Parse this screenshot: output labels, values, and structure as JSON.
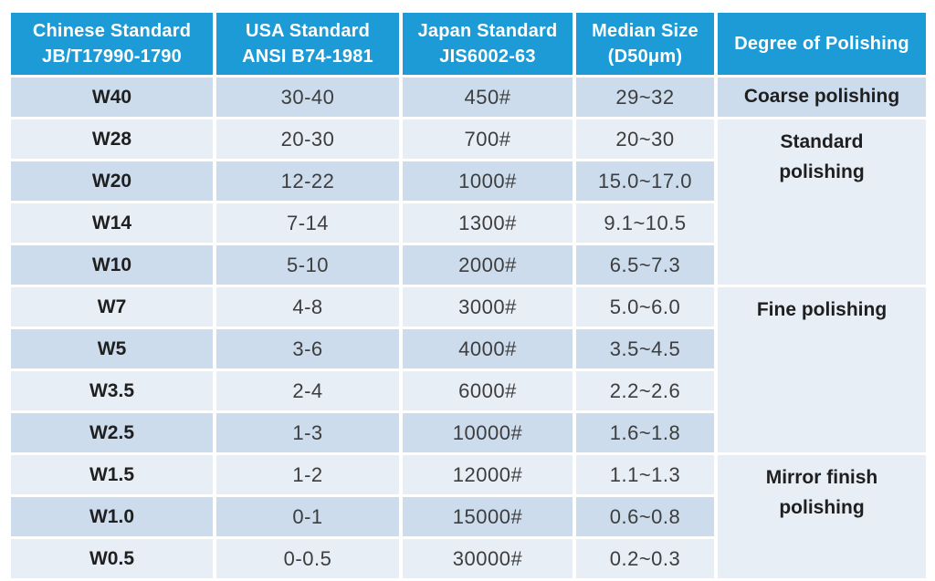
{
  "colors": {
    "header_bg": "#1C9BD6",
    "header_text": "#FFFFFF",
    "band_dark": "#CCDCEC",
    "band_light": "#E8EEF6",
    "text_strong": "#1F1F1F",
    "text_num": "#3D3D3D"
  },
  "table": {
    "headers": {
      "chinese": "Chinese Standard\nJB/T17990-1790",
      "usa": "USA Standard\nANSI B74-1981",
      "japan": "Japan Standard\nJIS6002-63",
      "median": "Median Size\n(D50μm)",
      "degree": "Degree of Polishing"
    },
    "rows": [
      {
        "chinese": "W40",
        "usa": "30-40",
        "japan": "450#",
        "median": "29~32"
      },
      {
        "chinese": "W28",
        "usa": "20-30",
        "japan": "700#",
        "median": "20~30"
      },
      {
        "chinese": "W20",
        "usa": "12-22",
        "japan": "1000#",
        "median": "15.0~17.0"
      },
      {
        "chinese": "W14",
        "usa": "7-14",
        "japan": "1300#",
        "median": "9.1~10.5"
      },
      {
        "chinese": "W10",
        "usa": "5-10",
        "japan": "2000#",
        "median": "6.5~7.3"
      },
      {
        "chinese": "W7",
        "usa": "4-8",
        "japan": "3000#",
        "median": "5.0~6.0"
      },
      {
        "chinese": "W5",
        "usa": "3-6",
        "japan": "4000#",
        "median": "3.5~4.5"
      },
      {
        "chinese": "W3.5",
        "usa": "2-4",
        "japan": "6000#",
        "median": "2.2~2.6"
      },
      {
        "chinese": "W2.5",
        "usa": "1-3",
        "japan": "10000#",
        "median": "1.6~1.8"
      },
      {
        "chinese": "W1.5",
        "usa": "1-2",
        "japan": "12000#",
        "median": "1.1~1.3"
      },
      {
        "chinese": "W1.0",
        "usa": "0-1",
        "japan": "15000#",
        "median": "0.6~0.8"
      },
      {
        "chinese": "W0.5",
        "usa": "0-0.5",
        "japan": "30000#",
        "median": "0.2~0.3"
      }
    ],
    "degree_groups": [
      {
        "label": "Coarse polishing",
        "rows": 1
      },
      {
        "label": "Standard\npolishing",
        "rows": 4
      },
      {
        "label": "Fine polishing",
        "rows": 4
      },
      {
        "label": "Mirror finish\npolishing",
        "rows": 3
      }
    ]
  },
  "chart_data": {
    "type": "table",
    "title": "Abrasive standards comparison and degree of polishing",
    "columns": [
      "Chinese Standard JB/T17990-1790",
      "USA Standard ANSI B74-1981",
      "Japan Standard JIS6002-63",
      "Median Size (D50μm)",
      "Degree of Polishing"
    ],
    "rows": [
      [
        "W40",
        "30-40",
        "450#",
        "29~32",
        "Coarse polishing"
      ],
      [
        "W28",
        "20-30",
        "700#",
        "20~30",
        "Standard polishing"
      ],
      [
        "W20",
        "12-22",
        "1000#",
        "15.0~17.0",
        "Standard polishing"
      ],
      [
        "W14",
        "7-14",
        "1300#",
        "9.1~10.5",
        "Standard polishing"
      ],
      [
        "W10",
        "5-10",
        "2000#",
        "6.5~7.3",
        "Standard polishing"
      ],
      [
        "W7",
        "4-8",
        "3000#",
        "5.0~6.0",
        "Fine polishing"
      ],
      [
        "W5",
        "3-6",
        "4000#",
        "3.5~4.5",
        "Fine polishing"
      ],
      [
        "W3.5",
        "2-4",
        "6000#",
        "2.2~2.6",
        "Fine polishing"
      ],
      [
        "W2.5",
        "1-3",
        "10000#",
        "1.6~1.8",
        "Fine polishing"
      ],
      [
        "W1.5",
        "1-2",
        "12000#",
        "1.1~1.3",
        "Mirror finish polishing"
      ],
      [
        "W1.0",
        "0-1",
        "15000#",
        "0.6~0.8",
        "Mirror finish polishing"
      ],
      [
        "W0.5",
        "0-0.5",
        "30000#",
        "0.2~0.3",
        "Mirror finish polishing"
      ]
    ]
  }
}
